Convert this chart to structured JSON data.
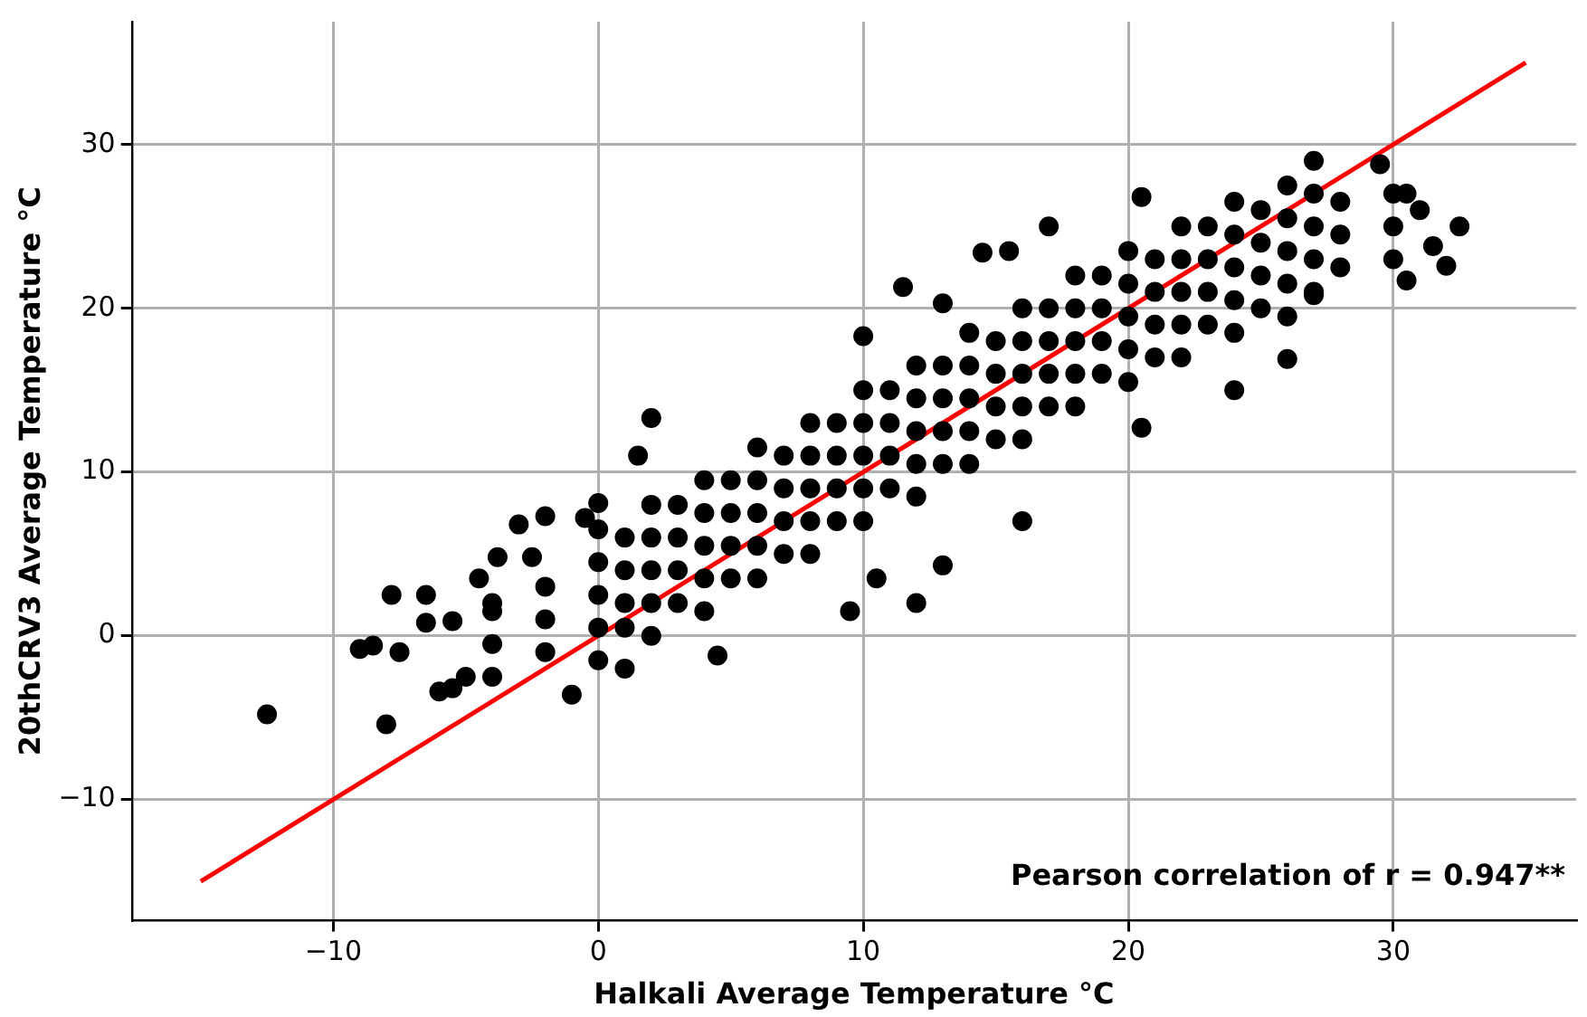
{
  "chart_data": {
    "type": "scatter",
    "xlabel": "Halkali Average Temperature °C",
    "ylabel": "20thCRV3 Average Temperature °C",
    "xlim": [
      -17.6,
      36.9
    ],
    "ylim": [
      -17.4,
      37.5
    ],
    "xticks": [
      -10,
      0,
      10,
      20,
      30
    ],
    "yticks": [
      -10,
      0,
      10,
      20,
      30
    ],
    "grid": true,
    "legend": false,
    "annotations": [
      "Pearson correlation of r = 0.947**"
    ],
    "series": [
      {
        "color": "#000000",
        "marker": "circle",
        "x": [
          -12.5,
          -9,
          -8.5,
          -8,
          -7.8,
          -7.5,
          -6.5,
          -6.5,
          -6,
          -5.5,
          -5.5,
          -5,
          -4.5,
          -4,
          -3.8,
          -3,
          -2.5,
          -2,
          -1,
          -0.5,
          0,
          1,
          1.5,
          2,
          4.5,
          9.5,
          10.5,
          12,
          13,
          16,
          11.5,
          10,
          13,
          14.5,
          15.5,
          17,
          20.5,
          20.5,
          24,
          26,
          27,
          29.5,
          30.5,
          31.5,
          32,
          32.5,
          31,
          30.5,
          27,
          -4,
          -4,
          -4,
          -2,
          -2,
          -2,
          0,
          0,
          0,
          0,
          0,
          2,
          2,
          2,
          2,
          2,
          4,
          4,
          4,
          4,
          4,
          6,
          6,
          6,
          6,
          6,
          8,
          8,
          8,
          8,
          8,
          10,
          10,
          10,
          10,
          10,
          12,
          12,
          12,
          12,
          12,
          14,
          14,
          14,
          14,
          14,
          16,
          16,
          16,
          16,
          16,
          18,
          18,
          18,
          18,
          18,
          20,
          20,
          20,
          20,
          20,
          22,
          22,
          22,
          22,
          22,
          24,
          24,
          24,
          24,
          24,
          26,
          26,
          26,
          26,
          26,
          28,
          28,
          28,
          30,
          30,
          30,
          1,
          1,
          1,
          1,
          3,
          3,
          3,
          3,
          5,
          5,
          5,
          5,
          7,
          7,
          7,
          7,
          9,
          9,
          9,
          9,
          11,
          11,
          11,
          11,
          13,
          13,
          13,
          13,
          15,
          15,
          15,
          15,
          17,
          17,
          17,
          17,
          19,
          19,
          19,
          19,
          21,
          21,
          21,
          21,
          23,
          23,
          23,
          23,
          25,
          25,
          25,
          25,
          27,
          27,
          27,
          27
        ],
        "values": [
          -4.8,
          -0.8,
          -0.6,
          -5.4,
          2.5,
          -1,
          2.5,
          0.8,
          -3.4,
          -3.2,
          0.9,
          -2.5,
          3.5,
          2,
          4.8,
          6.8,
          4.8,
          7.3,
          -3.6,
          7.2,
          8.1,
          -2,
          11,
          13.3,
          -1.2,
          1.5,
          3.5,
          2,
          4.3,
          7,
          21.3,
          18.3,
          20.3,
          23.4,
          23.5,
          25,
          26.8,
          12.7,
          15,
          16.9,
          29,
          28.8,
          21.7,
          23.8,
          22.6,
          25,
          26,
          27,
          20.8,
          -2.5,
          -0.5,
          1.5,
          -1,
          1,
          3,
          -1.5,
          0.5,
          2.5,
          4.5,
          6.5,
          0,
          2,
          4,
          6,
          8,
          1.5,
          3.5,
          5.5,
          7.5,
          9.5,
          3.5,
          5.5,
          7.5,
          9.5,
          11.5,
          5,
          7,
          9,
          11,
          13,
          7,
          9,
          11,
          13,
          15,
          8.5,
          10.5,
          12.5,
          14.5,
          16.5,
          10.5,
          12.5,
          14.5,
          16.5,
          18.5,
          12,
          14,
          16,
          18,
          20,
          14,
          16,
          18,
          20,
          22,
          15.5,
          17.5,
          19.5,
          21.5,
          23.5,
          17,
          19,
          21,
          23,
          25,
          18.5,
          20.5,
          22.5,
          24.5,
          26.5,
          19.5,
          21.5,
          23.5,
          25.5,
          27.5,
          22.5,
          24.5,
          26.5,
          23,
          25,
          27,
          0.5,
          2,
          4,
          6,
          2,
          4,
          6,
          8,
          3.5,
          5.5,
          7.5,
          9.5,
          5,
          7,
          9,
          11,
          7,
          9,
          11,
          13,
          9,
          11,
          13,
          15,
          10.5,
          12.5,
          14.5,
          16.5,
          12,
          14,
          16,
          18,
          14,
          16,
          18,
          20,
          16,
          18,
          20,
          22,
          17,
          19,
          21,
          23,
          19,
          21,
          23,
          25,
          20,
          22,
          24,
          26,
          21,
          23,
          25,
          27
        ]
      },
      {
        "type": "line",
        "color": "#ff0000",
        "x": [
          -15,
          35
        ],
        "values": [
          -15,
          35
        ]
      }
    ]
  }
}
